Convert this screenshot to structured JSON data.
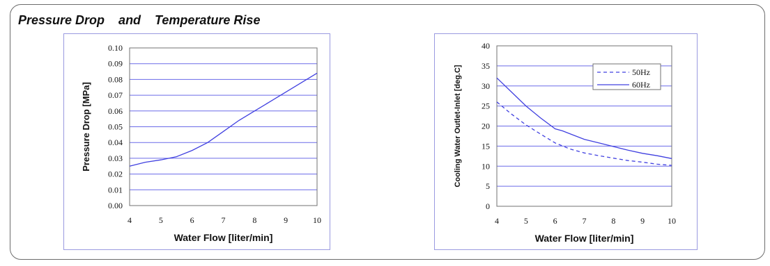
{
  "header": {
    "title": "Pressure Drop    and    Temperature Rise"
  },
  "chart_data": [
    {
      "type": "line",
      "title": "",
      "xlabel": "Water Flow  [liter/min]",
      "ylabel": "Pressure Drop  [MPa]",
      "xlim": [
        4,
        10
      ],
      "ylim": [
        0,
        0.1
      ],
      "x_ticks": [
        "4",
        "5",
        "6",
        "7",
        "8",
        "9",
        "10"
      ],
      "y_ticks": [
        "0.00",
        "0.01",
        "0.02",
        "0.03",
        "0.04",
        "0.05",
        "0.06",
        "0.07",
        "0.08",
        "0.09",
        "0.10"
      ],
      "grid": true,
      "series": [
        {
          "x": [
            4,
            4.5,
            5,
            5.5,
            6,
            6.5,
            7,
            7.5,
            8,
            8.5,
            9,
            9.5,
            10
          ],
          "values": [
            0.025,
            0.0275,
            0.029,
            0.031,
            0.035,
            0.04,
            0.047,
            0.054,
            0.06,
            0.066,
            0.072,
            0.078,
            0.084
          ],
          "color": "#4040e0",
          "style": "solid"
        }
      ]
    },
    {
      "type": "line",
      "title": "",
      "xlabel": "Water Flow  [liter/min]",
      "ylabel": "Cooling Water Outlet-Inlet  [deg.C]",
      "xlim": [
        4,
        10
      ],
      "ylim": [
        0,
        40
      ],
      "x_ticks": [
        "4",
        "5",
        "6",
        "7",
        "8",
        "9",
        "10"
      ],
      "y_ticks": [
        "0",
        "5",
        "10",
        "15",
        "20",
        "25",
        "30",
        "35",
        "40"
      ],
      "grid": true,
      "legend_position": "top-right",
      "series": [
        {
          "name": "50Hz",
          "x": [
            4,
            4.5,
            5,
            5.5,
            6,
            6.5,
            7,
            7.5,
            8,
            8.5,
            9,
            9.5,
            10
          ],
          "values": [
            26,
            23,
            20.3,
            18,
            15.8,
            14.3,
            13.3,
            12.6,
            12,
            11.4,
            11,
            10.5,
            10.2
          ],
          "color": "#4040e0",
          "style": "dashed"
        },
        {
          "name": "60Hz",
          "x": [
            4,
            4.5,
            5,
            5.5,
            6,
            6.25,
            6.5,
            7,
            7.5,
            8,
            8.5,
            9,
            9.5,
            10
          ],
          "values": [
            32,
            28.5,
            25,
            22,
            19.3,
            18.8,
            18.1,
            16.7,
            15.8,
            14.9,
            14,
            13.2,
            12.6,
            11.9
          ],
          "color": "#4040e0",
          "style": "solid"
        }
      ]
    }
  ]
}
